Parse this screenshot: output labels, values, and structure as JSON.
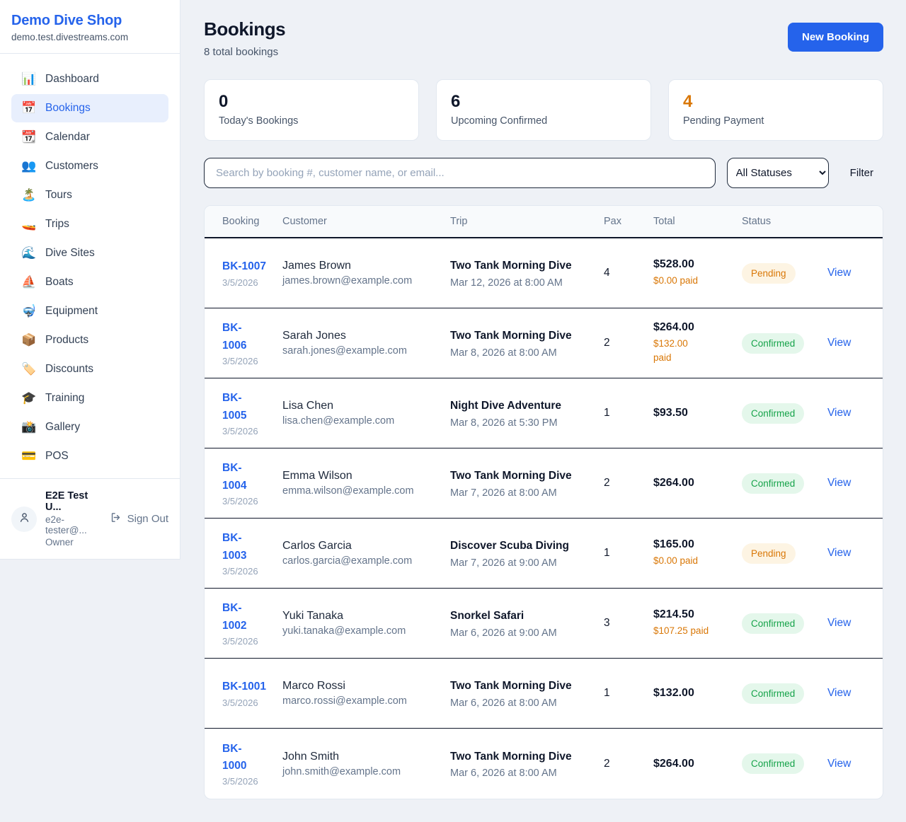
{
  "colors": {
    "accent": "#2563eb",
    "pending_text": "#d97706",
    "pending_bg": "#fdf4e3",
    "confirmed_text": "#16a34a",
    "confirmed_bg": "#e4f7eb"
  },
  "sidebar": {
    "brand": {
      "name": "Demo Dive Shop",
      "domain": "demo.test.divestreams.com"
    },
    "items": [
      {
        "icon": "📊",
        "icon_name": "bar-chart-icon",
        "label": "Dashboard",
        "active": false
      },
      {
        "icon": "📅",
        "icon_name": "calendar-icon",
        "label": "Bookings",
        "active": true
      },
      {
        "icon": "📆",
        "icon_name": "tear-off-calendar-icon",
        "label": "Calendar",
        "active": false
      },
      {
        "icon": "👥",
        "icon_name": "people-icon",
        "label": "Customers",
        "active": false
      },
      {
        "icon": "🏝️",
        "icon_name": "island-icon",
        "label": "Tours",
        "active": false
      },
      {
        "icon": "🚤",
        "icon_name": "speedboat-icon",
        "label": "Trips",
        "active": false
      },
      {
        "icon": "🌊",
        "icon_name": "wave-icon",
        "label": "Dive Sites",
        "active": false
      },
      {
        "icon": "⛵",
        "icon_name": "sailboat-icon",
        "label": "Boats",
        "active": false
      },
      {
        "icon": "🤿",
        "icon_name": "diving-mask-icon",
        "label": "Equipment",
        "active": false
      },
      {
        "icon": "📦",
        "icon_name": "package-icon",
        "label": "Products",
        "active": false
      },
      {
        "icon": "🏷️",
        "icon_name": "tag-icon",
        "label": "Discounts",
        "active": false
      },
      {
        "icon": "🎓",
        "icon_name": "graduation-cap-icon",
        "label": "Training",
        "active": false
      },
      {
        "icon": "📸",
        "icon_name": "camera-icon",
        "label": "Gallery",
        "active": false
      },
      {
        "icon": "💳",
        "icon_name": "credit-card-icon",
        "label": "POS",
        "active": false
      }
    ],
    "user": {
      "name": "E2E Test U...",
      "email": "e2e-tester@...",
      "role": "Owner",
      "sign_out_label": "Sign Out"
    }
  },
  "header": {
    "title": "Bookings",
    "subtitle": "8 total bookings",
    "new_booking_label": "New Booking"
  },
  "stats": [
    {
      "value": "0",
      "label": "Today's Bookings",
      "highlight": false
    },
    {
      "value": "6",
      "label": "Upcoming Confirmed",
      "highlight": false
    },
    {
      "value": "4",
      "label": "Pending Payment",
      "highlight": true
    }
  ],
  "filters": {
    "search_placeholder": "Search by booking #, customer name, or email...",
    "status_selected": "All Statuses",
    "filter_label": "Filter"
  },
  "table": {
    "columns": [
      "Booking",
      "Customer",
      "Trip",
      "Pax",
      "Total",
      "Status"
    ],
    "action_label": "View",
    "rows": [
      {
        "id": "BK-1007",
        "date": "3/5/2026",
        "customer": "James Brown",
        "email": "james.brown@example.com",
        "trip": "Two Tank Morning Dive",
        "when": "Mar 12, 2026 at 8:00 AM",
        "pax": "4",
        "total": "$528.00",
        "paid": "$0.00 paid",
        "status": "Pending"
      },
      {
        "id": "BK-\n1006",
        "date": "3/5/2026",
        "customer": "Sarah Jones",
        "email": "sarah.jones@example.com",
        "trip": "Two Tank Morning Dive",
        "when": "Mar 8, 2026 at 8:00 AM",
        "pax": "2",
        "total": "$264.00",
        "paid": "$132.00\npaid",
        "status": "Confirmed"
      },
      {
        "id": "BK-\n1005",
        "date": "3/5/2026",
        "customer": "Lisa Chen",
        "email": "lisa.chen@example.com",
        "trip": "Night Dive Adventure",
        "when": "Mar 8, 2026 at 5:30 PM",
        "pax": "1",
        "total": "$93.50",
        "paid": null,
        "status": "Confirmed"
      },
      {
        "id": "BK-\n1004",
        "date": "3/5/2026",
        "customer": "Emma Wilson",
        "email": "emma.wilson@example.com",
        "trip": "Two Tank Morning Dive",
        "when": "Mar 7, 2026 at 8:00 AM",
        "pax": "2",
        "total": "$264.00",
        "paid": null,
        "status": "Confirmed"
      },
      {
        "id": "BK-\n1003",
        "date": "3/5/2026",
        "customer": "Carlos Garcia",
        "email": "carlos.garcia@example.com",
        "trip": "Discover Scuba Diving",
        "when": "Mar 7, 2026 at 9:00 AM",
        "pax": "1",
        "total": "$165.00",
        "paid": "$0.00 paid",
        "status": "Pending"
      },
      {
        "id": "BK-\n1002",
        "date": "3/5/2026",
        "customer": "Yuki Tanaka",
        "email": "yuki.tanaka@example.com",
        "trip": "Snorkel Safari",
        "when": "Mar 6, 2026 at 9:00 AM",
        "pax": "3",
        "total": "$214.50",
        "paid": "$107.25 paid",
        "status": "Confirmed"
      },
      {
        "id": "BK-1001",
        "date": "3/5/2026",
        "customer": "Marco Rossi",
        "email": "marco.rossi@example.com",
        "trip": "Two Tank Morning Dive",
        "when": "Mar 6, 2026 at 8:00 AM",
        "pax": "1",
        "total": "$132.00",
        "paid": null,
        "status": "Confirmed"
      },
      {
        "id": "BK-\n1000",
        "date": "3/5/2026",
        "customer": "John Smith",
        "email": "john.smith@example.com",
        "trip": "Two Tank Morning Dive",
        "when": "Mar 6, 2026 at 8:00 AM",
        "pax": "2",
        "total": "$264.00",
        "paid": null,
        "status": "Confirmed"
      }
    ]
  }
}
